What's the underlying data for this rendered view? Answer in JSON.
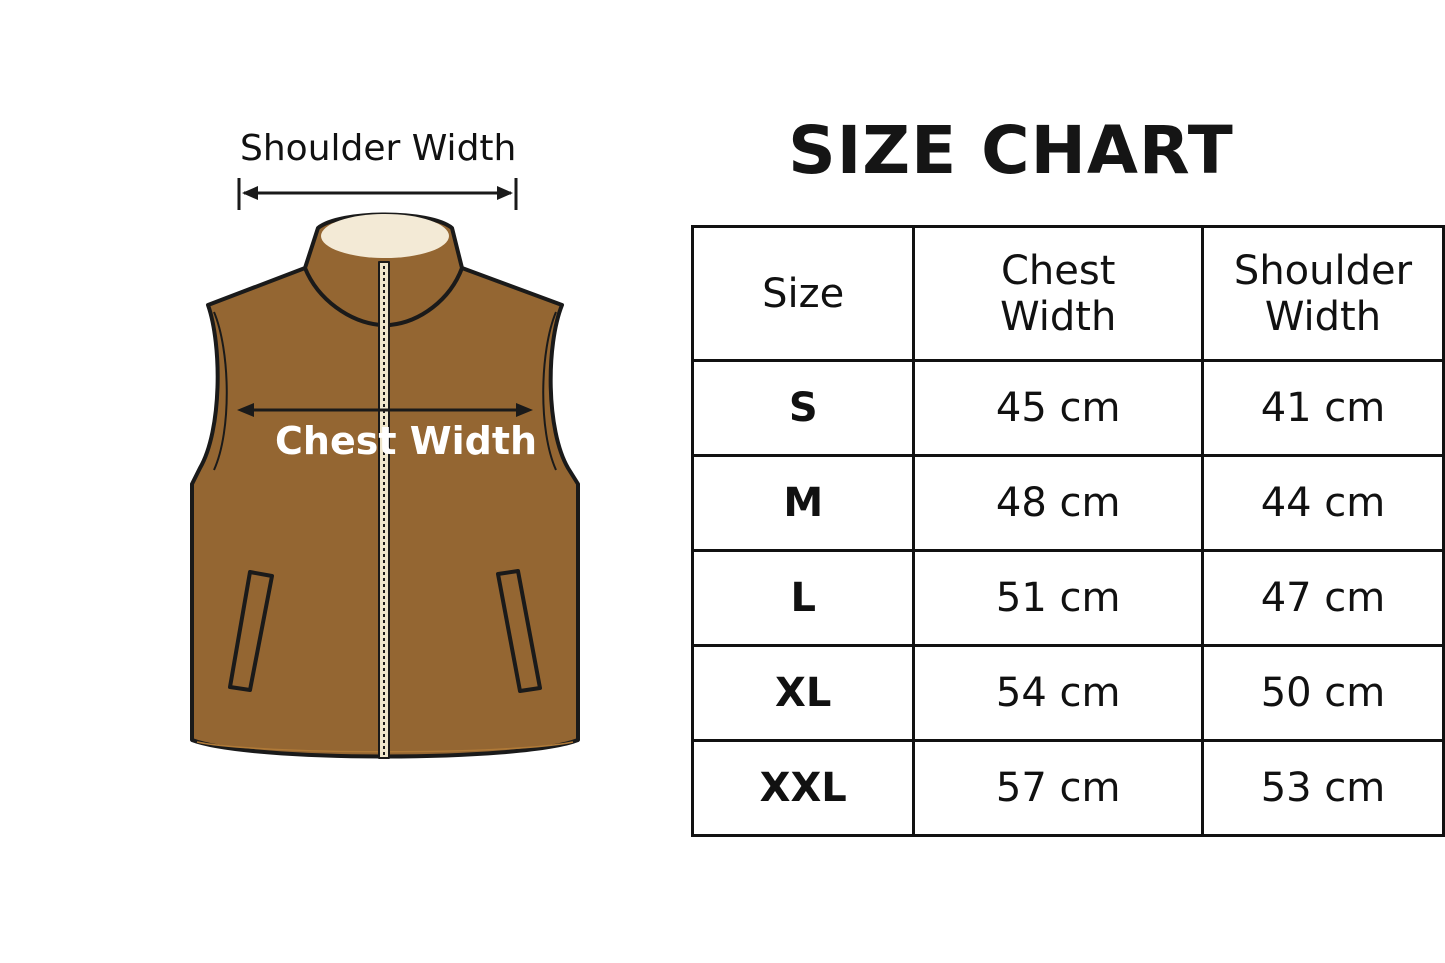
{
  "illustration": {
    "shoulder_label": "Shoulder Width",
    "chest_label": "Chest Width",
    "colors": {
      "vest": "#946632",
      "lining": "#f3ead6",
      "outline": "#1a1a1a",
      "zipper": "#efe6cc"
    }
  },
  "title": "SIZE CHART",
  "table": {
    "headers": [
      "Size",
      "Chest Width",
      "Shoulder Width"
    ],
    "rows": [
      {
        "size": "S",
        "chest": "45 cm",
        "shoulder": "41 cm"
      },
      {
        "size": "M",
        "chest": "48 cm",
        "shoulder": "44 cm"
      },
      {
        "size": "L",
        "chest": "51 cm",
        "shoulder": "47 cm"
      },
      {
        "size": "XL",
        "chest": "54 cm",
        "shoulder": "50 cm"
      },
      {
        "size": "XXL",
        "chest": "57 cm",
        "shoulder": "53 cm"
      }
    ]
  }
}
